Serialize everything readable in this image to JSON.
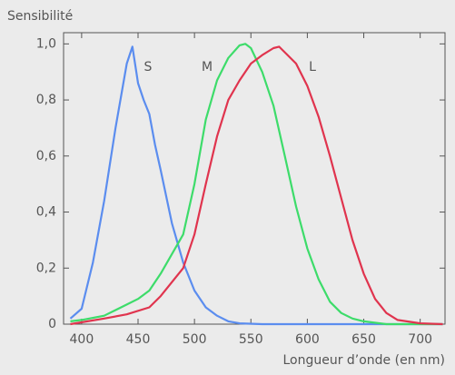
{
  "chart_data": {
    "type": "line",
    "y_label": "Sensibilité",
    "x_label": "Longueur d’onde (en nm)",
    "xlim": [
      384,
      722
    ],
    "ylim": [
      0,
      1.04
    ],
    "xticks": [
      400,
      450,
      500,
      550,
      600,
      650,
      700
    ],
    "yticks": [
      0,
      {
        "value": 0.2,
        "label": "0,2"
      },
      {
        "value": 0.4,
        "label": "0,4"
      },
      {
        "value": 0.6,
        "label": "0,6"
      },
      {
        "value": 0.8,
        "label": "0,8"
      },
      {
        "value": 1,
        "label": "1,0"
      }
    ],
    "series": [
      {
        "name": "S",
        "color": "#5b8def",
        "x": [
          390,
          400,
          410,
          420,
          430,
          440,
          445,
          450,
          455,
          460,
          465,
          470,
          480,
          490,
          500,
          510,
          520,
          530,
          540,
          560,
          600,
          650,
          700,
          720
        ],
        "values": [
          0.02,
          0.055,
          0.22,
          0.44,
          0.7,
          0.93,
          0.99,
          0.86,
          0.8,
          0.75,
          0.64,
          0.55,
          0.36,
          0.22,
          0.12,
          0.06,
          0.03,
          0.01,
          0.003,
          0,
          0,
          0,
          0,
          0
        ]
      },
      {
        "name": "M",
        "color": "#3ddc6a",
        "x": [
          390,
          400,
          420,
          440,
          450,
          460,
          470,
          480,
          490,
          500,
          510,
          520,
          530,
          540,
          545,
          550,
          560,
          570,
          580,
          590,
          600,
          610,
          620,
          630,
          640,
          650,
          670,
          720
        ],
        "values": [
          0.01,
          0.015,
          0.03,
          0.07,
          0.09,
          0.12,
          0.18,
          0.25,
          0.32,
          0.5,
          0.73,
          0.87,
          0.95,
          0.995,
          1,
          0.985,
          0.9,
          0.78,
          0.6,
          0.42,
          0.27,
          0.16,
          0.08,
          0.04,
          0.02,
          0.01,
          0,
          0
        ]
      },
      {
        "name": "L",
        "color": "#e0344e",
        "x": [
          390,
          420,
          440,
          460,
          470,
          480,
          490,
          500,
          510,
          520,
          530,
          540,
          550,
          560,
          570,
          575,
          580,
          590,
          600,
          610,
          620,
          630,
          640,
          650,
          660,
          670,
          680,
          700,
          720
        ],
        "values": [
          0,
          0.02,
          0.035,
          0.06,
          0.1,
          0.15,
          0.2,
          0.32,
          0.5,
          0.67,
          0.8,
          0.87,
          0.93,
          0.96,
          0.985,
          0.99,
          0.97,
          0.93,
          0.85,
          0.74,
          0.6,
          0.45,
          0.3,
          0.18,
          0.09,
          0.04,
          0.015,
          0.003,
          0
        ]
      }
    ]
  }
}
